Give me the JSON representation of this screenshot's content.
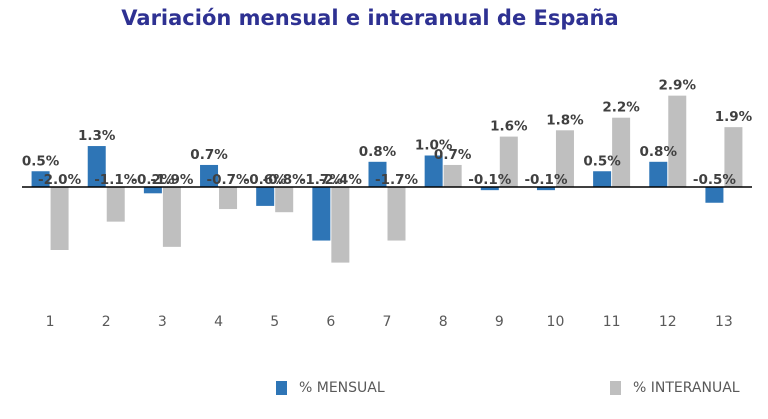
{
  "chart_data": {
    "type": "bar",
    "title": "Variación mensual e interanual de España",
    "xlabel": "",
    "ylabel": "",
    "categories": [
      "1",
      "2",
      "3",
      "4",
      "5",
      "6",
      "7",
      "8",
      "9",
      "10",
      "11",
      "12",
      "13"
    ],
    "series": [
      {
        "name": "% MENSUAL",
        "color": "#2e75b6",
        "values": [
          0.5,
          1.3,
          -0.2,
          0.7,
          -0.6,
          -1.7,
          0.8,
          1.0,
          -0.1,
          -0.1,
          0.5,
          0.8,
          -0.5
        ],
        "labels": [
          "0.5%",
          "1.3%",
          "-0.2%",
          "0.7%",
          "-0.6%",
          "-1.7%",
          "0.8%",
          "1.0%",
          "-0.1%",
          "-0.1%",
          "0.5%",
          "0.8%",
          "-0.5%"
        ]
      },
      {
        "name": "% INTERANUAL",
        "color": "#bfbfbf",
        "values": [
          -2.0,
          -1.1,
          -1.9,
          -0.7,
          -0.8,
          -2.4,
          -1.7,
          0.7,
          1.6,
          1.8,
          2.2,
          2.9,
          1.9
        ],
        "labels": [
          "-2.0%",
          "-1.1%",
          "-1.9%",
          "-0.7%",
          "-0.8%",
          "-2.4%",
          "-1.7%",
          "0.7%",
          "1.6%",
          "1.8%",
          "2.2%",
          "2.9%",
          "1.9%"
        ]
      }
    ],
    "ylim": [
      -3.0,
      3.2
    ],
    "grid": false,
    "legend": "bottom"
  }
}
